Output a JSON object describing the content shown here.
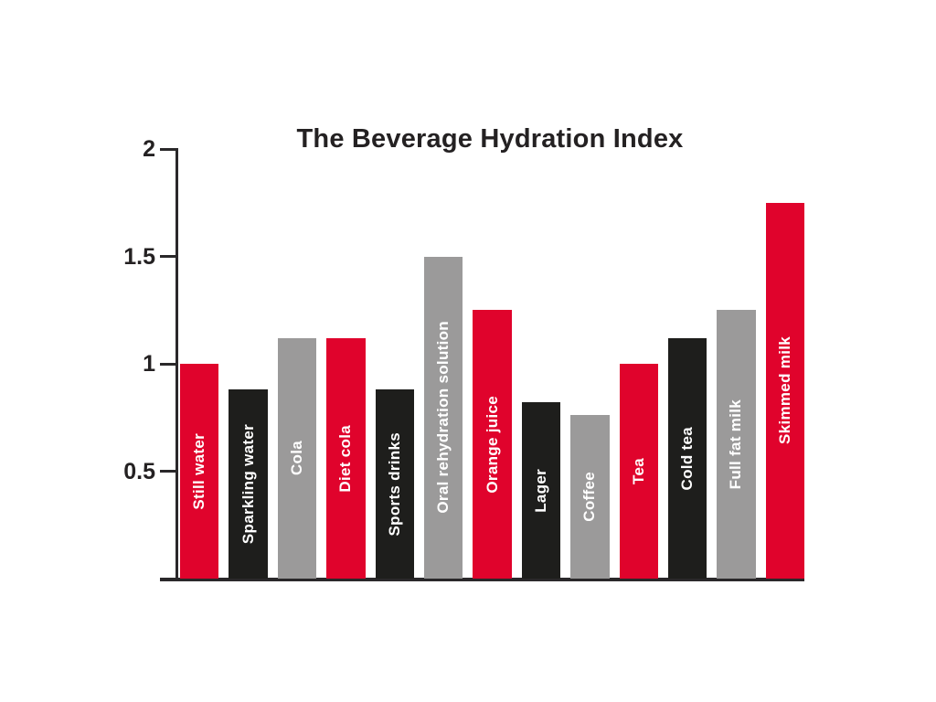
{
  "chart_data": {
    "type": "bar",
    "title": "The Beverage Hydration Index",
    "categories": [
      "Still water",
      "Sparkling water",
      "Cola",
      "Diet cola",
      "Sports drinks",
      "Oral rehydration solution",
      "Orange juice",
      "Lager",
      "Coffee",
      "Tea",
      "Cold tea",
      "Full fat milk",
      "Skimmed milk"
    ],
    "values": [
      1.0,
      0.88,
      1.12,
      1.12,
      0.88,
      1.5,
      1.25,
      0.82,
      0.76,
      1.0,
      1.12,
      1.25,
      1.75
    ],
    "bar_color_cycle": [
      "#e0032c",
      "#1e1e1c",
      "#9b9a9a"
    ],
    "bar_label_color": "#ffffff",
    "xlabel": "",
    "ylabel": "",
    "ylim": [
      0,
      2
    ],
    "yticks": [
      2,
      1.5,
      1,
      0.5
    ],
    "ytick_labels": [
      "2",
      "1.5",
      "1",
      "0.5"
    ],
    "grid": false,
    "legend": "none",
    "axis_color": "#2a282a",
    "title_color": "#242122",
    "background_color": "#ffffff"
  }
}
